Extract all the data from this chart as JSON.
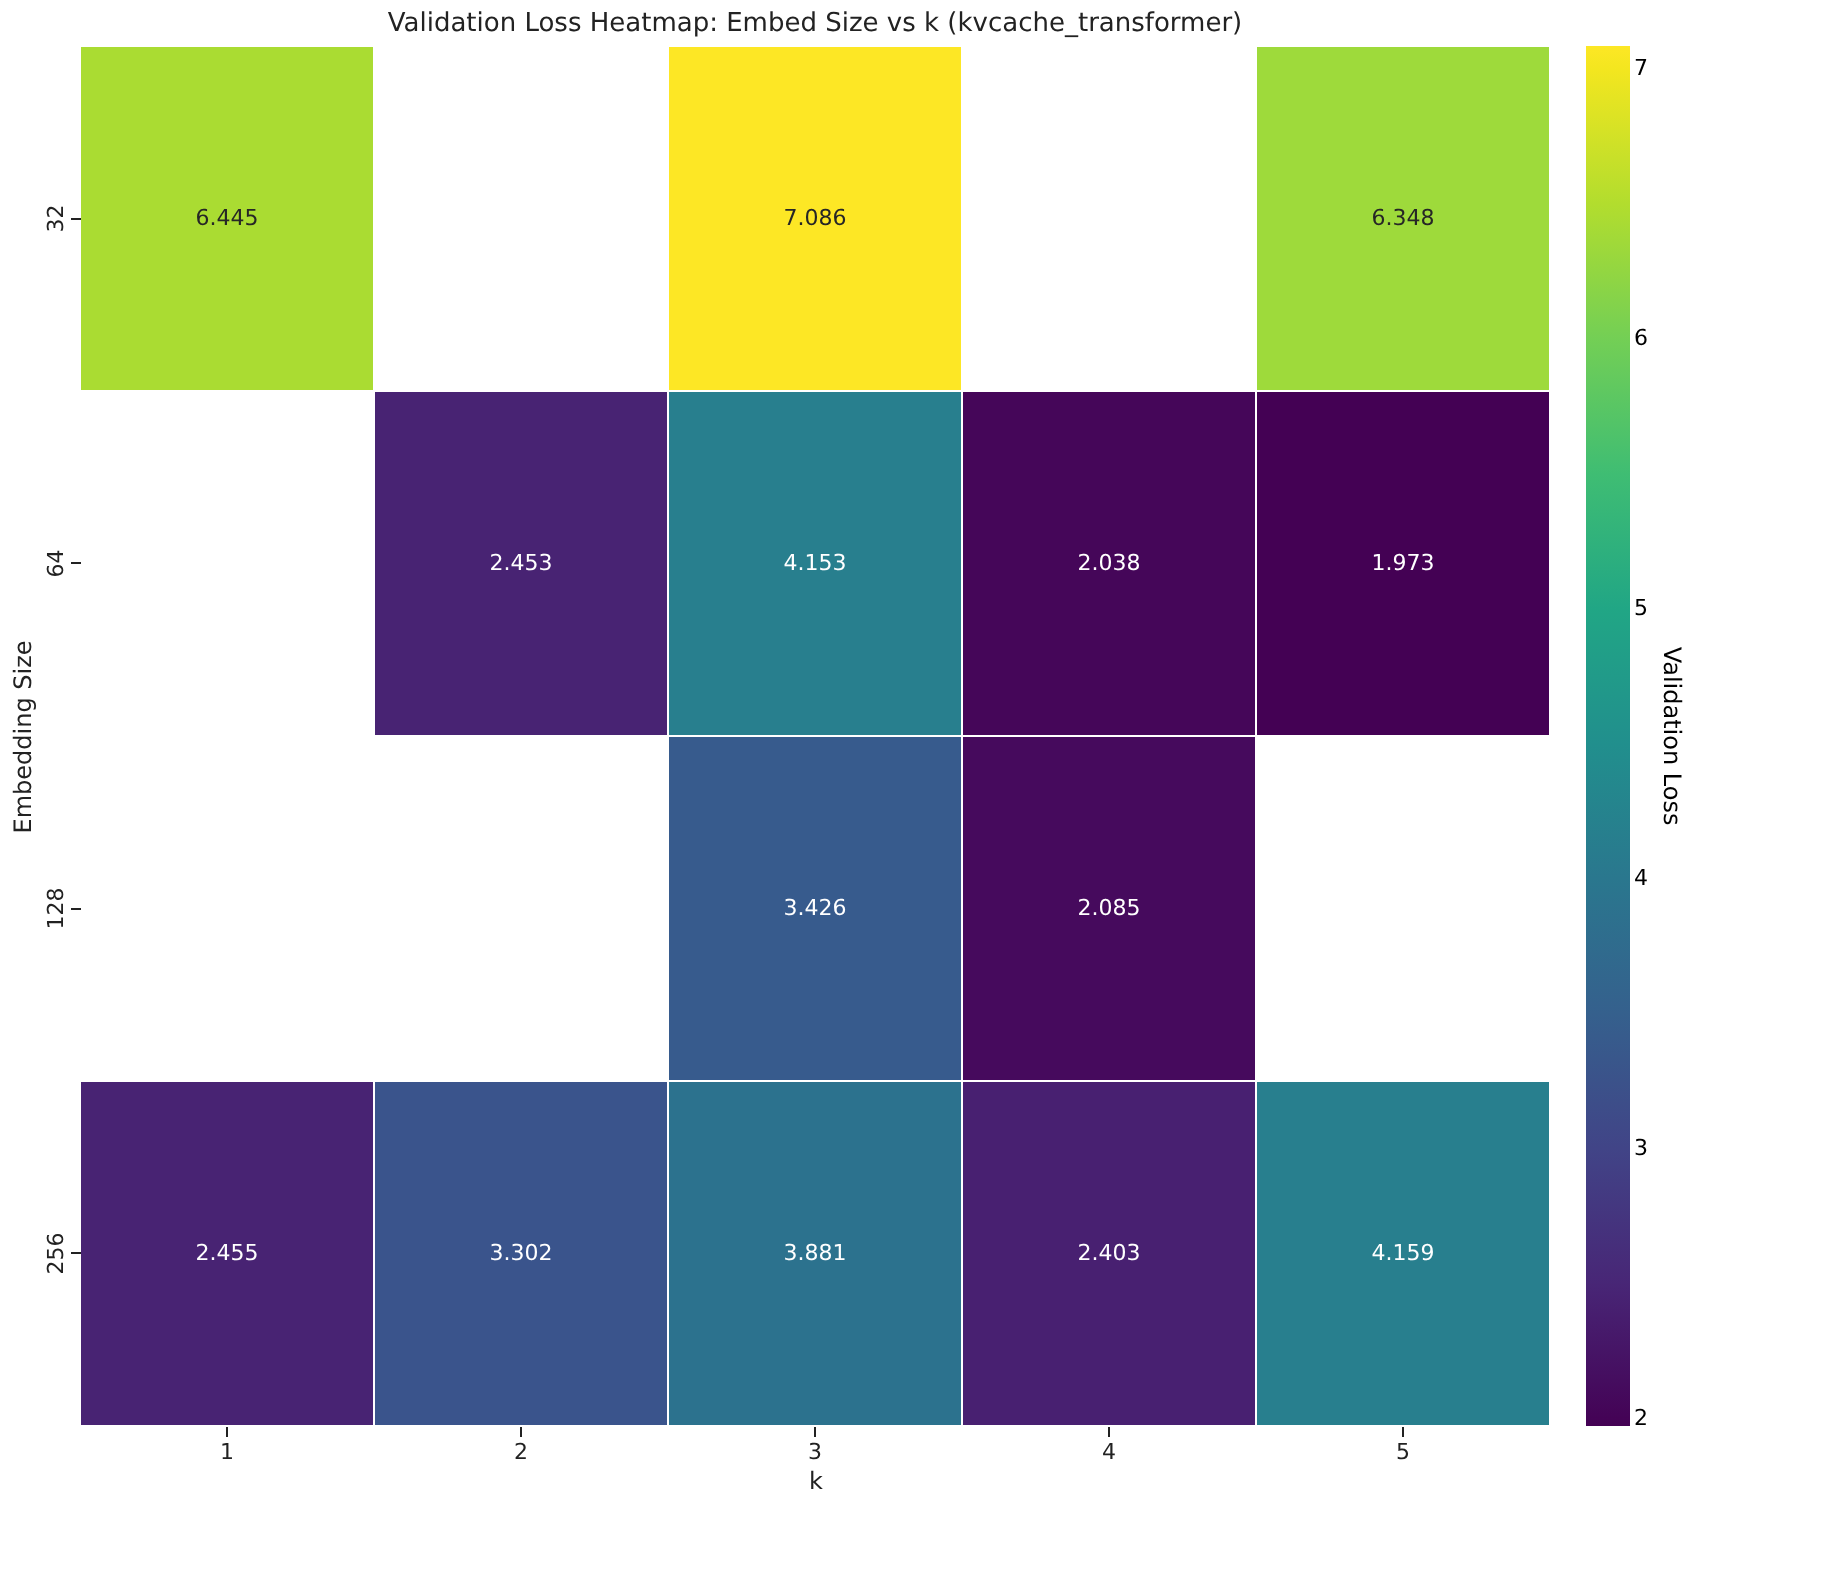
{
  "chart_data": {
    "type": "heatmap",
    "title": "Validation Loss Heatmap: Embed Size vs k (kvcache_transformer)",
    "xlabel": "k",
    "ylabel": "Embedding Size",
    "clabel": "Validation Loss",
    "categories": [
      "1",
      "2",
      "3",
      "4",
      "5"
    ],
    "y_categories": [
      "32",
      "64",
      "128",
      "256"
    ],
    "cells": [
      [
        6.445,
        null,
        7.086,
        null,
        6.348
      ],
      [
        null,
        2.453,
        4.153,
        2.038,
        1.973
      ],
      [
        null,
        null,
        3.426,
        2.085,
        null
      ],
      [
        2.455,
        3.302,
        3.881,
        2.403,
        4.159
      ]
    ],
    "clim": [
      1.973,
      7.086
    ],
    "cticks": [
      2,
      3,
      4,
      5,
      6,
      7
    ],
    "data_labels": true
  }
}
